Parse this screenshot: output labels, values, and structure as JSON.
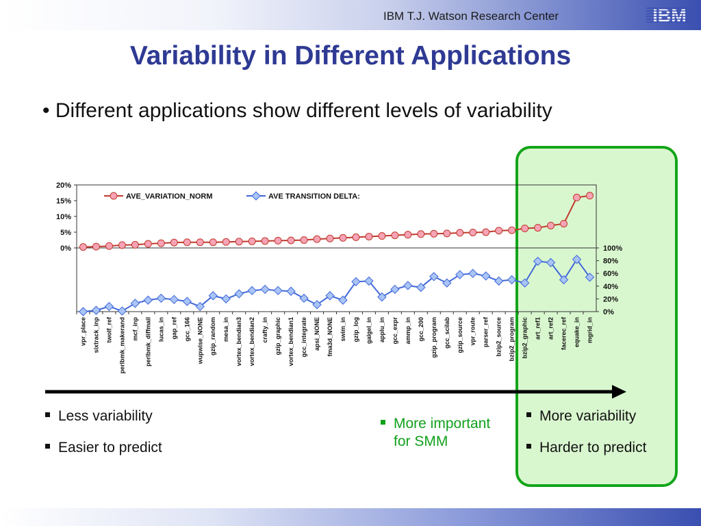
{
  "header": {
    "org": "IBM T.J. Watson Research Center",
    "logo_text": "IBM"
  },
  "slide": {
    "title": "Variability in Different Applications",
    "bullet": "• Different applications show different levels of variability"
  },
  "left_points": [
    "Less variability",
    "Easier to predict"
  ],
  "middle_point": [
    "More important",
    "for SMM"
  ],
  "right_points": [
    "More variability",
    "Harder to predict"
  ],
  "colors": {
    "title": "#2e3a93",
    "highlight_border": "#13a51a",
    "highlight_fill": "#d9f7cf",
    "series1": "#c0392b",
    "series1_marker": "#f6a3b6",
    "series2": "#3f67d9",
    "series2_marker": "#a9c4f5",
    "green_text": "#11a11b"
  },
  "chart_data": {
    "type": "line",
    "categories": [
      "vpr_place",
      "sixtrack_inp",
      "twolf_ref",
      "perlbmk_makerand",
      "mcf_inp",
      "perlbmk_diffmail",
      "lucas_in",
      "gap_ref",
      "gcc_166",
      "wupwise_NONE",
      "gzip_random",
      "mesa_in",
      "vortex_bendian3",
      "vortex_bendian2",
      "crafty_in",
      "gzip_graphic",
      "vortex_bendian1",
      "gcc_integrate",
      "apsi_NONE",
      "fma3d_NONE",
      "swim_in",
      "gzip_log",
      "galgel_in",
      "applu_in",
      "gcc_expr",
      "ammp_in",
      "gcc_200",
      "gzip_program",
      "gcc_scilab",
      "gzip_source",
      "vpr_route",
      "parser_ref",
      "bzip2_source",
      "bzip2_program",
      "bzip2_graphic",
      "art_ref1",
      "art_ref2",
      "facerec_ref",
      "equake_in",
      "mgrid_in"
    ],
    "series": [
      {
        "name": "AVE_VARIATION_NORM",
        "axis": "left",
        "values": [
          0.3,
          0.4,
          0.6,
          0.9,
          1.0,
          1.3,
          1.5,
          1.7,
          1.8,
          1.8,
          1.8,
          1.9,
          2.0,
          2.1,
          2.2,
          2.3,
          2.4,
          2.5,
          2.8,
          3.0,
          3.2,
          3.4,
          3.6,
          3.8,
          4.0,
          4.2,
          4.4,
          4.5,
          4.6,
          4.8,
          4.9,
          5.0,
          5.5,
          5.6,
          6.2,
          6.4,
          7.1,
          7.7,
          16.0,
          16.6
        ]
      },
      {
        "name": "AVE TRANSITION DELTA:",
        "axis": "right",
        "values": [
          0,
          2,
          8,
          1,
          13,
          18,
          21,
          19,
          16,
          8,
          25,
          20,
          28,
          33,
          35,
          33,
          32,
          21,
          11,
          25,
          18,
          47,
          48,
          23,
          35,
          41,
          38,
          55,
          45,
          58,
          60,
          56,
          48,
          50,
          45,
          79,
          77,
          50,
          82,
          54
        ]
      }
    ],
    "left_axis": {
      "ylim": [
        0,
        20
      ],
      "ticks": [
        "20%",
        "15%",
        "10%",
        "5%",
        "0%"
      ]
    },
    "right_axis": {
      "ylim": [
        0,
        100
      ],
      "ticks": [
        "100%",
        "80%",
        "60%",
        "40%",
        "20%",
        "0%"
      ]
    },
    "legend_placement": "top"
  }
}
